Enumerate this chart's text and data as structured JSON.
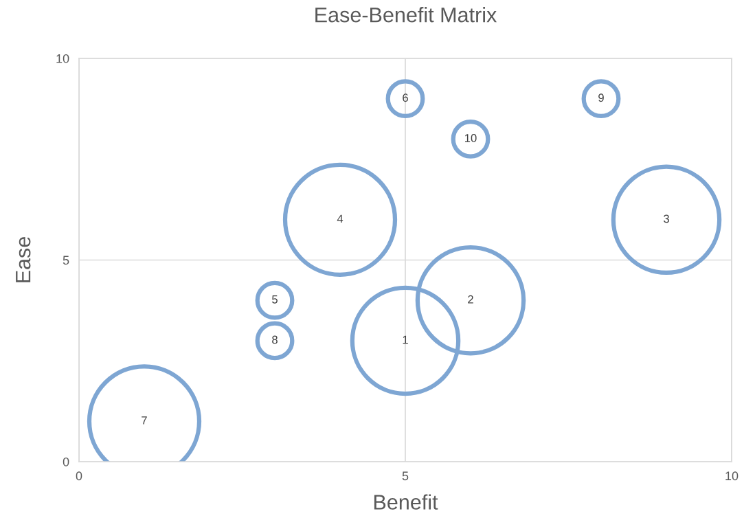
{
  "chart_data": {
    "type": "bubble",
    "title": "Ease-Benefit Matrix",
    "xlabel": "Benefit",
    "ylabel": "Ease",
    "x": [
      5,
      6,
      9,
      4,
      3,
      5,
      1,
      3,
      8,
      6
    ],
    "values": [
      3,
      4,
      6,
      6,
      4,
      9,
      1,
      3,
      9,
      8
    ],
    "sizes": [
      0.93,
      0.93,
      0.93,
      1,
      0.1,
      0.1,
      1,
      0.1,
      0.1,
      0.1
    ],
    "annotations": [
      {
        "text": "1",
        "x": 5,
        "y": 3
      },
      {
        "text": "2",
        "x": 6,
        "y": 4
      },
      {
        "text": "3",
        "x": 9,
        "y": 6
      },
      {
        "text": "4",
        "x": 4,
        "y": 6
      },
      {
        "text": "5",
        "x": 3,
        "y": 4
      },
      {
        "text": "6",
        "x": 5,
        "y": 9
      },
      {
        "text": "7",
        "x": 1,
        "y": 1
      },
      {
        "text": "8",
        "x": 3,
        "y": 3
      },
      {
        "text": "9",
        "x": 8,
        "y": 9
      },
      {
        "text": "10",
        "x": 6,
        "y": 8
      }
    ],
    "color": "#7ea6d3",
    "xlim": [
      0,
      10
    ],
    "ylim": [
      0,
      10
    ],
    "xticks": [
      0,
      5,
      10
    ],
    "yticks": [
      0,
      5,
      10
    ],
    "grid": true,
    "legend": false
  }
}
